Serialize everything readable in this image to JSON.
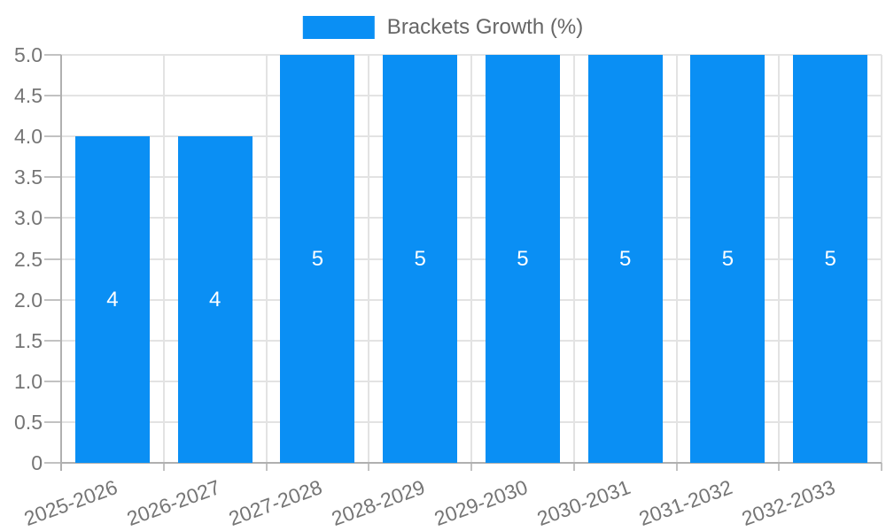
{
  "legend": {
    "label": "Brackets Growth (%)"
  },
  "chart_data": {
    "type": "bar",
    "title": "",
    "series_name": "Brackets Growth (%)",
    "categories": [
      "2025-2026",
      "2026-2027",
      "2027-2028",
      "2028-2029",
      "2029-2030",
      "2030-2031",
      "2031-2032",
      "2032-2033"
    ],
    "values": [
      4,
      4,
      5,
      5,
      5,
      5,
      5,
      5
    ],
    "data_labels": [
      "4",
      "4",
      "5",
      "5",
      "5",
      "5",
      "5",
      "5"
    ],
    "xlabel": "",
    "ylabel": "",
    "ylim": [
      0,
      5
    ],
    "yticks": [
      0,
      0.5,
      1,
      1.5,
      2,
      2.5,
      3,
      3.5,
      4,
      4.5,
      5
    ],
    "ytick_labels": [
      "0",
      "0.5",
      "1.0",
      "1.5",
      "2.0",
      "2.5",
      "3.0",
      "3.5",
      "4.0",
      "4.5",
      "5.0"
    ],
    "grid": true,
    "legend_position": "top"
  },
  "colors": {
    "bar": "#0a8ff4",
    "bar_label": "#ffffff",
    "grid": "#e3e3e3",
    "axis": "#b0b0b0",
    "tick_mark": "#c2c2c2",
    "tick_text": "#757575",
    "legend_text": "#666666",
    "background": "#ffffff"
  }
}
